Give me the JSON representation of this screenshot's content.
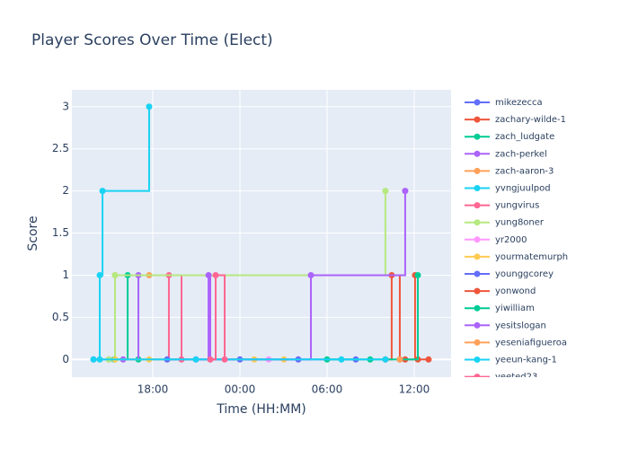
{
  "chart_data": {
    "type": "step-line",
    "title": "Player Scores Over Time (Elect)",
    "x_label": "Time (HH:MM)",
    "y_label": "Score",
    "xlim": [
      12.43,
      38.54
    ],
    "ylim": [
      -0.21,
      3.2
    ],
    "xticks": [
      {
        "value": 18,
        "label": "18:00"
      },
      {
        "value": 24,
        "label": "00:00"
      },
      {
        "value": 30,
        "label": "06:00"
      },
      {
        "value": 36,
        "label": "12:00"
      }
    ],
    "yticks": [
      0,
      0.5,
      1,
      1.5,
      2,
      2.5,
      3
    ],
    "grid": true,
    "legend": "right",
    "series": [
      {
        "name": "mikezecca",
        "color": "#636efa",
        "x": [
          13.92,
          24,
          31.98
        ],
        "values": [
          0,
          0,
          0
        ]
      },
      {
        "name": "zachary-wilde-1",
        "color": "#EF553B",
        "x": [
          34.02,
          34.45,
          35.01
        ],
        "values": [
          0,
          1,
          0
        ]
      },
      {
        "name": "zach_ludgate",
        "color": "#00cc96",
        "x": [
          15.34,
          16.27,
          17.01
        ],
        "values": [
          0,
          1,
          0
        ]
      },
      {
        "name": "zach-perkel",
        "color": "#ab63fa",
        "x": [
          15.96,
          17.01
        ],
        "values": [
          0,
          1
        ]
      },
      {
        "name": "zach-aaron-3",
        "color": "#FFA15A",
        "x": [
          14.97,
          15.4,
          17.75
        ],
        "values": [
          0,
          1,
          1
        ]
      },
      {
        "name": "yvngjuulpod",
        "color": "#19d3f3",
        "x": [
          13.92,
          14.35,
          14.54,
          17.75
        ],
        "values": [
          0,
          1,
          2,
          3
        ]
      },
      {
        "name": "yungvirus",
        "color": "#FF6692",
        "x": [
          18.99,
          19.11,
          19.98
        ],
        "values": [
          0,
          1,
          0
        ]
      },
      {
        "name": "yung8oner",
        "color": "#B6E880",
        "x": [
          14.97,
          15.4,
          34.02
        ],
        "values": [
          0,
          1,
          2
        ]
      },
      {
        "name": "yr2000",
        "color": "#FF97FF",
        "x": [
          25.98,
          28.02
        ],
        "values": [
          0,
          0
        ]
      },
      {
        "name": "yourmatemurph",
        "color": "#FECB52",
        "x": [
          15.4,
          17.75,
          24.99,
          27.03
        ],
        "values": [
          0,
          0,
          0,
          0
        ]
      },
      {
        "name": "younggcorey",
        "color": "#636efa",
        "x": [
          18.99,
          28.02
        ],
        "values": [
          0,
          0
        ]
      },
      {
        "name": "yonwond",
        "color": "#EF553B",
        "x": [
          35.38,
          36.06,
          36.25,
          36.99
        ],
        "values": [
          0,
          1,
          0,
          0
        ]
      },
      {
        "name": "yiwilliam",
        "color": "#00cc96",
        "x": [
          30,
          32.97,
          36.25
        ],
        "values": [
          0,
          0,
          1
        ]
      },
      {
        "name": "yesitslogan",
        "color": "#ab63fa",
        "x": [
          20.97,
          21.84,
          21.96,
          28.89,
          35.38
        ],
        "values": [
          0,
          1,
          0,
          1,
          2
        ]
      },
      {
        "name": "yeseniafigueroa",
        "color": "#FFA15A",
        "x": [
          35.01
        ],
        "values": [
          0
        ]
      },
      {
        "name": "yeeun-kang-1",
        "color": "#19d3f3",
        "x": [
          14.35,
          20.97,
          30.99,
          34.02
        ],
        "values": [
          0,
          0,
          0,
          0
        ]
      },
      {
        "name": "yeeted23",
        "color": "#FF6692",
        "x": [
          21.96,
          22.33,
          22.95
        ],
        "values": [
          0,
          1,
          0
        ]
      }
    ]
  }
}
